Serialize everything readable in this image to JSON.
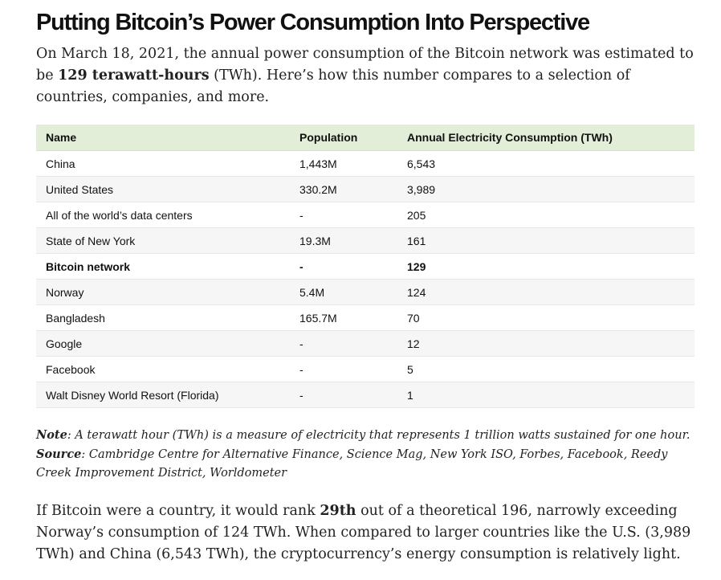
{
  "article": {
    "title": "Putting Bitcoin’s Power Consumption Into Perspective",
    "intro": {
      "part1": "On March 18, 2021, the annual power consumption of the Bitcoin network was estimated to be ",
      "bold": "129 terawatt-hours",
      "part2": " (TWh). Here’s how this number compares to a selection of countries, companies, and more."
    }
  },
  "table": {
    "headers": [
      "Name",
      "Population",
      "Annual Electricity Consumption (TWh)"
    ],
    "rows": [
      {
        "name": "China",
        "population": "1,443M",
        "consumption": "6,543"
      },
      {
        "name": "United States",
        "population": "330.2M",
        "consumption": "3,989"
      },
      {
        "name": "All of the world’s data centers",
        "population": "-",
        "consumption": "205"
      },
      {
        "name": "State of New York",
        "population": "19.3M",
        "consumption": "161"
      },
      {
        "name": "Bitcoin network",
        "population": "-",
        "consumption": "129"
      },
      {
        "name": "Norway",
        "population": "5.4M",
        "consumption": "124"
      },
      {
        "name": "Bangladesh",
        "population": "165.7M",
        "consumption": "70"
      },
      {
        "name": "Google",
        "population": "-",
        "consumption": "12"
      },
      {
        "name": "Facebook",
        "population": "-",
        "consumption": "5"
      },
      {
        "name": "Walt Disney World Resort (Florida)",
        "population": "-",
        "consumption": "1"
      }
    ]
  },
  "notes": {
    "note_label": "Note",
    "note_text": ": A terawatt hour (TWh) is a measure of electricity that represents 1 trillion watts sustained for one hour.",
    "source_label": "Source",
    "source_text": ": Cambridge Centre for Alternative Finance, Science Mag, New York ISO, Forbes, Facebook, Reedy Creek Improvement District, Worldometer"
  },
  "conclusion": {
    "part1": "If Bitcoin were a country, it would rank ",
    "bold": "29th",
    "part2": " out of a theoretical 196, narrowly exceeding Norway’s consumption of 124 TWh. When compared to larger countries like the U.S. (3,989 TWh) and China (6,543 TWh), the cryptocurrency’s energy consumption is relatively light."
  },
  "colors": {
    "header_bg": "#e3eed9",
    "stripe_bg": "#f6f6f6",
    "text": "#1a1a1a"
  }
}
